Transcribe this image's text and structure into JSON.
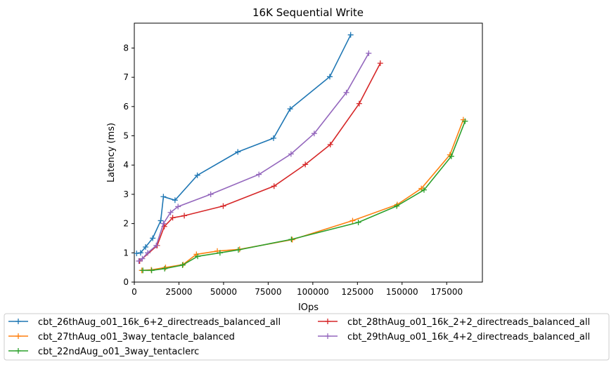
{
  "chart_data": {
    "type": "line",
    "title": "16K  Sequential Write",
    "xlabel": "IOps",
    "ylabel": "Latency (ms)",
    "xlim": [
      0,
      195000
    ],
    "ylim": [
      0,
      8.85
    ],
    "xticks": [
      0,
      25000,
      50000,
      75000,
      100000,
      125000,
      150000,
      175000
    ],
    "xtick_labels": [
      "0",
      "25000",
      "50000",
      "75000",
      "100000",
      "125000",
      "150000",
      "175000"
    ],
    "yticks": [
      0,
      1,
      2,
      3,
      4,
      5,
      6,
      7,
      8
    ],
    "ytick_labels": [
      "0",
      "1",
      "2",
      "3",
      "4",
      "5",
      "6",
      "7",
      "8"
    ],
    "grid": false,
    "legend_position": "bottom",
    "marker": "+",
    "series": [
      {
        "name": "cbt_26thAug_o01_16k_6+2_directreads_balanced_all",
        "color": "#1f77b4",
        "x": [
          1300,
          3500,
          6300,
          10300,
          14800,
          16300,
          22800,
          35300,
          58000,
          78000,
          87300,
          109500,
          121200
        ],
        "y": [
          0.98,
          1.0,
          1.2,
          1.5,
          2.1,
          2.92,
          2.8,
          3.65,
          4.45,
          4.92,
          5.92,
          7.02,
          8.45
        ]
      },
      {
        "name": "cbt_27thAug_o01_3way_tentacle_balanced",
        "color": "#ff7f0e",
        "x": [
          4200,
          9500,
          17500,
          27300,
          34800,
          46500,
          59000,
          88500,
          122300,
          147300,
          160800,
          176800,
          184300
        ],
        "y": [
          0.4,
          0.42,
          0.5,
          0.6,
          0.95,
          1.06,
          1.12,
          1.45,
          2.1,
          2.65,
          3.2,
          4.35,
          5.55
        ]
      },
      {
        "name": "cbt_22ndAug_o01_3way_tentaclerc",
        "color": "#2ca02c",
        "x": [
          4800,
          9700,
          17000,
          27000,
          35500,
          48000,
          58300,
          88000,
          125500,
          147000,
          162300,
          177600,
          185300
        ],
        "y": [
          0.4,
          0.4,
          0.46,
          0.58,
          0.88,
          1.0,
          1.1,
          1.46,
          2.04,
          2.6,
          3.15,
          4.3,
          5.5
        ]
      },
      {
        "name": "cbt_28thAug_o01_16k_2+2_directreads_balanced_all",
        "color": "#d62728",
        "x": [
          3000,
          12800,
          16800,
          21500,
          28000,
          49800,
          78300,
          95800,
          109800,
          126000,
          137800
        ],
        "y": [
          0.72,
          1.25,
          1.9,
          2.2,
          2.27,
          2.6,
          3.28,
          4.02,
          4.7,
          6.1,
          7.48
        ]
      },
      {
        "name": "cbt_29thAug_o01_16k_4+2_directreads_balanced_all",
        "color": "#9467bd",
        "x": [
          2500,
          4500,
          7500,
          12300,
          16300,
          20300,
          24500,
          42800,
          69800,
          87800,
          100800,
          118800,
          131300
        ],
        "y": [
          0.72,
          0.8,
          1.0,
          1.25,
          2.0,
          2.38,
          2.58,
          3.0,
          3.68,
          4.38,
          5.08,
          6.48,
          7.82
        ]
      }
    ]
  }
}
